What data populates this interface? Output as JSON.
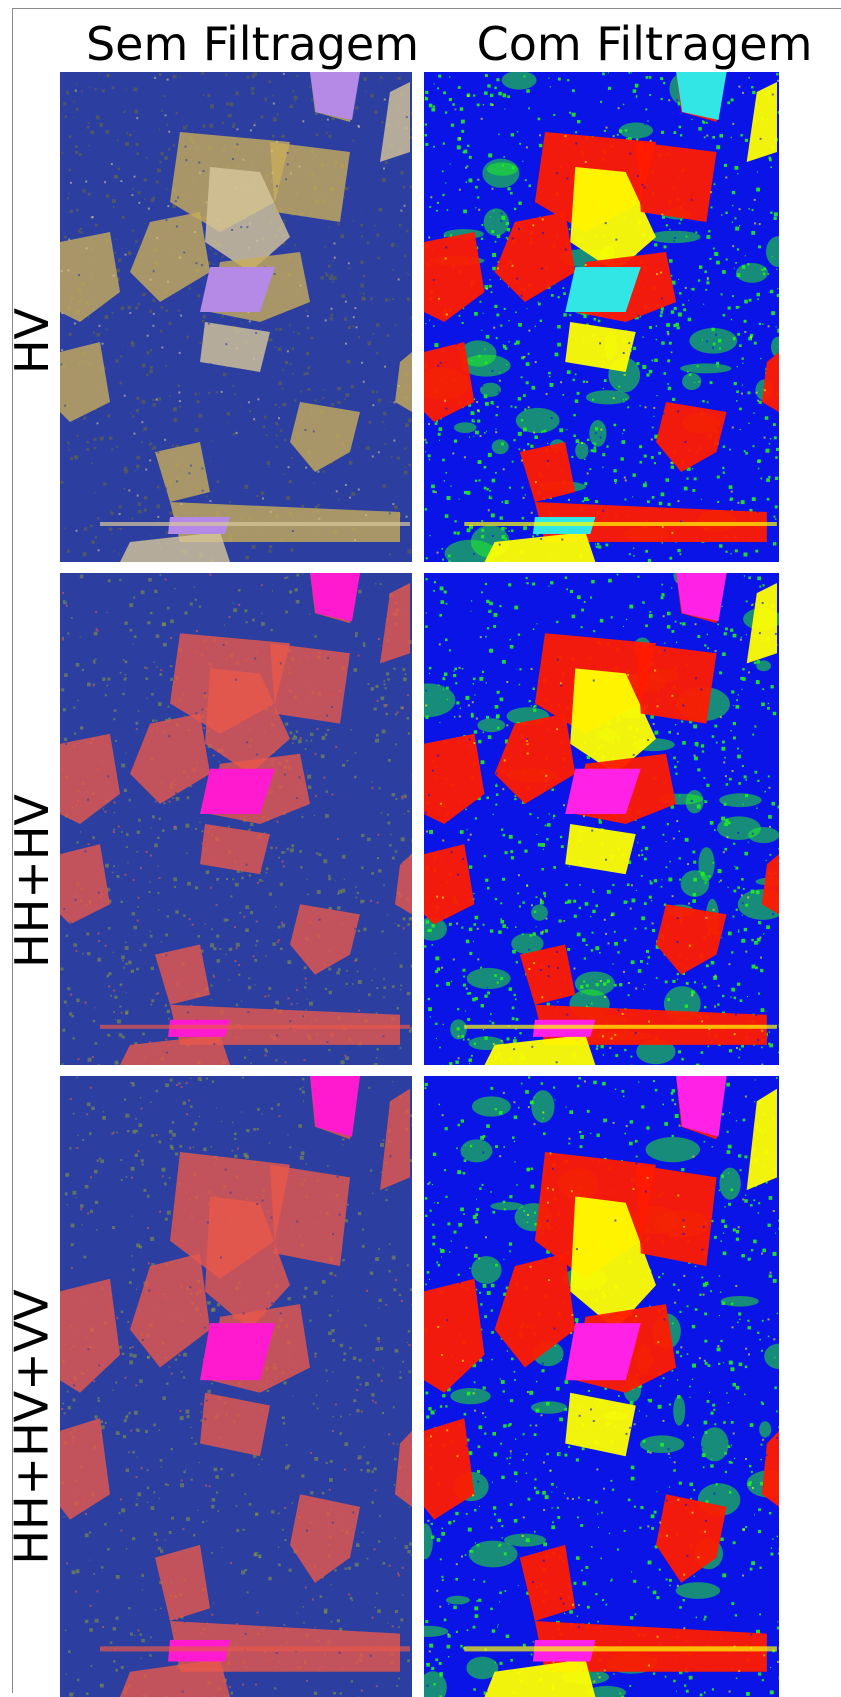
{
  "columns": [
    "Sem Filtragem",
    "Com Filtragem"
  ],
  "rows": [
    "HV",
    "HH+HV",
    "HH+HV+VV"
  ],
  "panels": [
    {
      "row": 0,
      "col": 0,
      "style": "unfiltered-hv",
      "colors": {
        "background": "#2c3fa0",
        "fields": "#c8ad5a",
        "bright": "#d7c79a",
        "highlight": "#b48ae6"
      }
    },
    {
      "row": 0,
      "col": 1,
      "style": "filtered-hv",
      "colors": {
        "background": "#0a14e6",
        "fields": "#ff1a00",
        "green": "#22ee22",
        "bright": "#ffff00",
        "highlight": "#33e6e6"
      }
    },
    {
      "row": 1,
      "col": 0,
      "style": "unfiltered-hhhv",
      "colors": {
        "background": "#2c3fa0",
        "fields": "#e8574a",
        "green": "#8a9a3a",
        "highlight": "#ff1ad0"
      }
    },
    {
      "row": 1,
      "col": 1,
      "style": "filtered-hhhv",
      "colors": {
        "background": "#0a14e6",
        "fields": "#ff1a00",
        "green": "#22ee22",
        "bright": "#ffff00",
        "highlight": "#ff22e6"
      }
    },
    {
      "row": 2,
      "col": 0,
      "style": "unfiltered-full",
      "colors": {
        "background": "#2c3fa0",
        "fields": "#e8574a",
        "green": "#8a9a3a",
        "highlight": "#ff1ad0"
      }
    },
    {
      "row": 2,
      "col": 1,
      "style": "filtered-full",
      "colors": {
        "background": "#0a14e6",
        "fields": "#ff1a00",
        "green": "#22ee22",
        "bright": "#ffff00",
        "highlight": "#ff22e6"
      }
    }
  ]
}
